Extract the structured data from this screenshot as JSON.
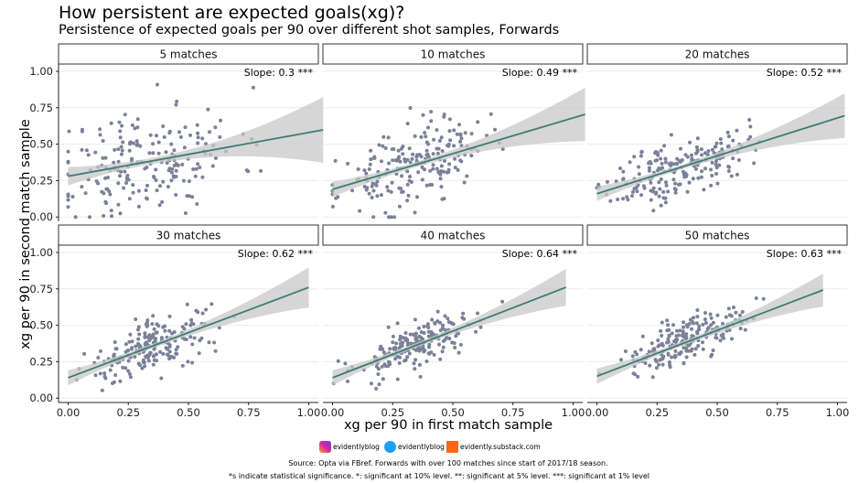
{
  "title": "How persistent are expected goals(xg)?",
  "subtitle": "Persistence of expected goals per 90 over different shot samples, Forwards",
  "social": {
    "instagram": "evidentlyblog",
    "twitter": "evidentlyblog",
    "substack": "evidently.substack.com"
  },
  "source": "Source: Opta via FBref. Forwards with over 100 matches since start of 2017/18 season.",
  "note": "*s indicate statistical significance. *: significant at 10% level. **: significant at 5% level. ***: significant at 1% level",
  "colors": {
    "points": "#7a8198",
    "line": "#3d7b72",
    "band": "#c8c8c8",
    "strip_bg": "#ffffff",
    "grid": "#ebebeb"
  },
  "chart_data": {
    "type": "scatter",
    "xlabel": "xg per 90 in first match sample",
    "ylabel": "xg per 90 in second match sample",
    "xlim": [
      -0.04,
      1.04
    ],
    "ylim": [
      -0.03,
      1.05
    ],
    "xticks": [
      "0.00",
      "0.25",
      "0.50",
      "0.75",
      "1.00"
    ],
    "yticks": [
      "0.00",
      "0.25",
      "0.50",
      "0.75",
      "1.00"
    ],
    "facets": [
      {
        "label": "5 matches",
        "slope_label": "Slope: 0.3 ***",
        "intercept": 0.28,
        "slope": 0.3,
        "x_range": [
          0.0,
          1.06
        ],
        "band_width": 0.06,
        "n": 200,
        "x_mean": 0.33,
        "x_sd": 0.19,
        "resid_sd": 0.19,
        "seed": 11
      },
      {
        "label": "10 matches",
        "slope_label": "Slope: 0.49 ***",
        "intercept": 0.19,
        "slope": 0.49,
        "x_range": [
          0.0,
          1.05
        ],
        "band_width": 0.05,
        "n": 200,
        "x_mean": 0.33,
        "x_sd": 0.15,
        "resid_sd": 0.13,
        "seed": 23
      },
      {
        "label": "20 matches",
        "slope_label": "Slope: 0.52 ***",
        "intercept": 0.16,
        "slope": 0.52,
        "x_range": [
          0.0,
          1.03
        ],
        "band_width": 0.045,
        "n": 200,
        "x_mean": 0.34,
        "x_sd": 0.14,
        "resid_sd": 0.1,
        "seed": 37
      },
      {
        "label": "30 matches",
        "slope_label": "Slope: 0.62 ***",
        "intercept": 0.14,
        "slope": 0.62,
        "x_range": [
          0.0,
          1.0
        ],
        "band_width": 0.045,
        "n": 200,
        "x_mean": 0.35,
        "x_sd": 0.13,
        "resid_sd": 0.085,
        "seed": 41
      },
      {
        "label": "40 matches",
        "slope_label": "Slope: 0.64 ***",
        "intercept": 0.14,
        "slope": 0.64,
        "x_range": [
          0.0,
          0.97
        ],
        "band_width": 0.045,
        "n": 200,
        "x_mean": 0.35,
        "x_sd": 0.13,
        "resid_sd": 0.08,
        "seed": 53
      },
      {
        "label": "50 matches",
        "slope_label": "Slope: 0.63 ***",
        "intercept": 0.15,
        "slope": 0.63,
        "x_range": [
          0.0,
          0.94
        ],
        "band_width": 0.045,
        "n": 200,
        "x_mean": 0.36,
        "x_sd": 0.12,
        "resid_sd": 0.075,
        "seed": 67
      }
    ]
  }
}
